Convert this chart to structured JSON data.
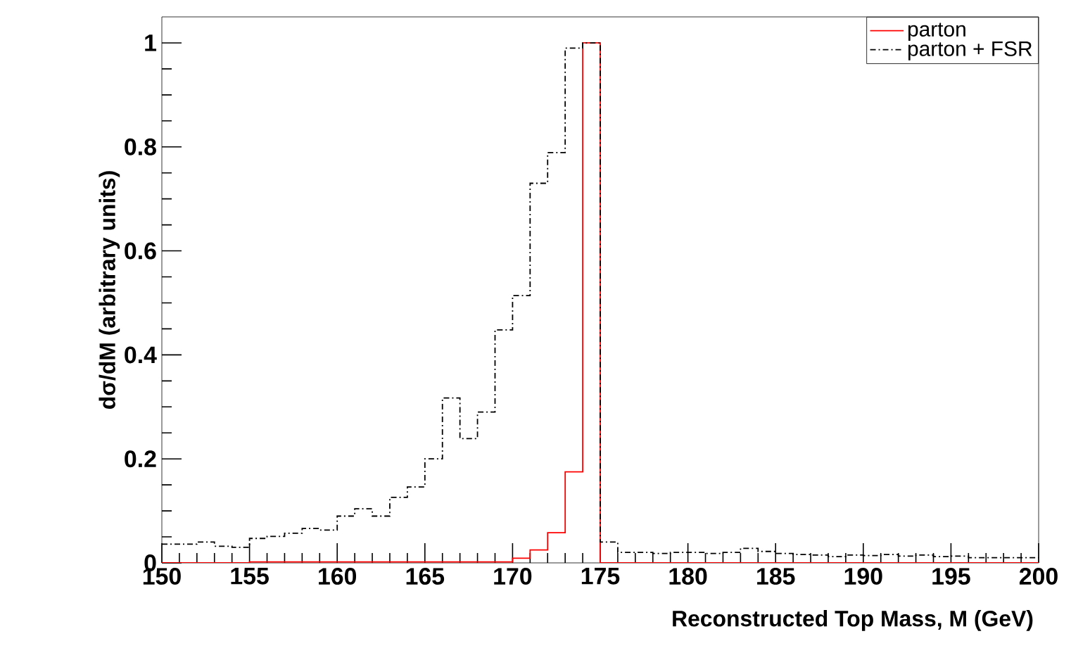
{
  "chart_data": {
    "type": "histogram",
    "xlabel": "Reconstructed Top Mass, M (GeV)",
    "ylabel": "dσ/dM (arbitrary units)",
    "bins": [
      150,
      151,
      152,
      153,
      154,
      155,
      156,
      157,
      158,
      159,
      160,
      161,
      162,
      163,
      164,
      165,
      166,
      167,
      168,
      169,
      170,
      171,
      172,
      173,
      174,
      175,
      176,
      177,
      178,
      179,
      180,
      181,
      182,
      183,
      184,
      185,
      186,
      187,
      188,
      189,
      190,
      191,
      192,
      193,
      194,
      195,
      196,
      197,
      198,
      199,
      200
    ],
    "series": [
      {
        "name": "parton",
        "color": "#ff0000",
        "line_style": "solid",
        "values": [
          0,
          0,
          0,
          0,
          0,
          0.002,
          0.002,
          0.002,
          0.002,
          0.002,
          0.002,
          0.002,
          0.002,
          0.002,
          0.002,
          0.002,
          0.002,
          0.002,
          0.002,
          0.002,
          0.009,
          0.025,
          0.058,
          0.175,
          1.0,
          0,
          0,
          0,
          0,
          0,
          0,
          0,
          0,
          0,
          0,
          0,
          0,
          0,
          0,
          0,
          0,
          0,
          0,
          0,
          0,
          0,
          0,
          0,
          0,
          0
        ]
      },
      {
        "name": "parton + FSR",
        "color": "#000000",
        "line_style": "dashed",
        "values": [
          0.036,
          0.036,
          0.04,
          0.032,
          0.03,
          0.047,
          0.051,
          0.057,
          0.066,
          0.063,
          0.09,
          0.104,
          0.09,
          0.126,
          0.146,
          0.2,
          0.317,
          0.239,
          0.29,
          0.448,
          0.514,
          0.73,
          0.789,
          0.99,
          1.0,
          0.04,
          0.02,
          0.02,
          0.018,
          0.02,
          0.02,
          0.018,
          0.02,
          0.028,
          0.022,
          0.018,
          0.016,
          0.015,
          0.012,
          0.015,
          0.014,
          0.016,
          0.013,
          0.015,
          0.012,
          0.013,
          0.01,
          0.01,
          0.01,
          0.01
        ]
      }
    ],
    "xlim": [
      150,
      200
    ],
    "xticks": [
      150,
      155,
      160,
      165,
      170,
      175,
      180,
      185,
      190,
      195,
      200
    ],
    "ylim": [
      0,
      1.05
    ],
    "yticks": [
      0,
      0.2,
      0.4,
      0.6,
      0.8,
      1
    ],
    "legend": "top right",
    "grid": false
  }
}
